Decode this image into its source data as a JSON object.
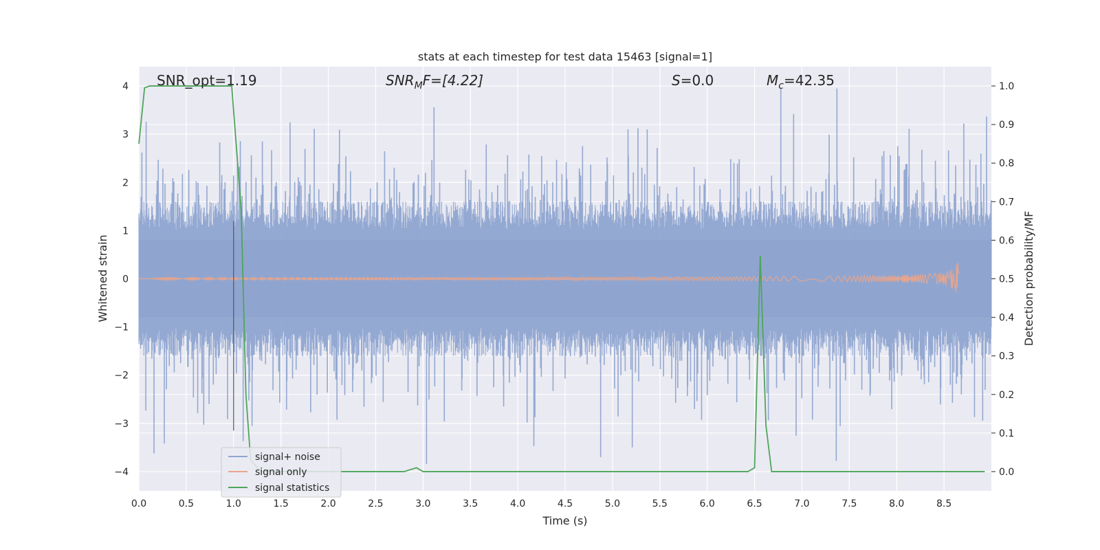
{
  "chart_data": {
    "type": "line",
    "title": "stats at each timestep for test data 15463 [signal=1]",
    "xlabel": "Time (s)",
    "ylabel_left": "Whitened strain",
    "ylabel_right": "Detection probability/MF",
    "xlim": [
      0.0,
      9.0
    ],
    "ylim_left": [
      -4.4,
      4.4
    ],
    "ylim_right": [
      -0.05,
      1.05
    ],
    "x_ticks": [
      "0.0",
      "0.5",
      "1.0",
      "1.5",
      "2.0",
      "2.5",
      "3.0",
      "3.5",
      "4.0",
      "4.5",
      "5.0",
      "5.5",
      "6.0",
      "6.5",
      "7.0",
      "7.5",
      "8.0",
      "8.5"
    ],
    "y_left_ticks": [
      "4",
      "3",
      "2",
      "1",
      "0",
      "−1",
      "−2",
      "−3",
      "−4"
    ],
    "y_right_ticks": [
      "1.0",
      "0.9",
      "0.8",
      "0.7",
      "0.6",
      "0.5",
      "0.4",
      "0.3",
      "0.2",
      "0.1",
      "0.0"
    ],
    "grid": true,
    "legend_position": "bottom-left",
    "annotations": {
      "snr_opt": "SNR_opt=1.19",
      "snr_mf_prefix": "SNR",
      "snr_mf_sub": "M",
      "snr_mf_suffix": "F=[4.22]",
      "s_var": "S",
      "s_value": "=0.0",
      "mc_var": "M",
      "mc_sub": "c",
      "mc_value": "=42.35"
    },
    "marker_line_x": 1.0,
    "series": [
      {
        "name": "signal+ noise",
        "color": "#8fa5d0",
        "axis": "left",
        "kind": "noise",
        "amplitude_envelope": 1.0
      },
      {
        "name": "signal only",
        "color": "#e8a58c",
        "axis": "left",
        "kind": "chirp",
        "merger_time": 8.65,
        "peak_amplitude": 0.35
      },
      {
        "name": "signal statistics",
        "color": "#4ea55a",
        "axis": "right",
        "x": [
          0.0,
          0.06,
          0.11,
          0.2,
          0.5,
          0.8,
          0.98,
          1.08,
          1.13,
          1.18,
          1.25,
          1.3,
          1.5,
          2.0,
          2.5,
          2.8,
          2.93,
          3.0,
          3.5,
          4.0,
          5.0,
          6.0,
          6.43,
          6.5,
          6.56,
          6.62,
          6.68,
          7.0,
          8.0,
          8.93
        ],
        "y": [
          0.85,
          0.995,
          1.0,
          1.0,
          1.0,
          1.0,
          1.0,
          0.68,
          0.2,
          0.03,
          0.01,
          0.0,
          0.0,
          0.0,
          0.0,
          0.0,
          0.01,
          0.0,
          0.0,
          0.0,
          0.0,
          0.0,
          0.0,
          0.01,
          0.56,
          0.12,
          0.0,
          0.0,
          0.0,
          0.0
        ]
      }
    ]
  }
}
